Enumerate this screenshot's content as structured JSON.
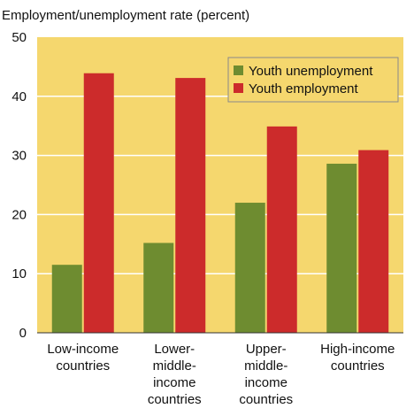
{
  "chart_data": {
    "type": "bar",
    "title": "",
    "ylabel": "Employment/unemployment rate (percent)",
    "xlabel": "",
    "ylim": [
      0,
      50
    ],
    "yticks": [
      0,
      10,
      20,
      30,
      40,
      50
    ],
    "grid": true,
    "legend_position": "top-right",
    "categories": [
      [
        "Low-income",
        "countries"
      ],
      [
        "Lower-",
        "middle-",
        "income",
        "countries"
      ],
      [
        "Upper-",
        "middle-",
        "income",
        "countries"
      ],
      [
        "High-income",
        "countries"
      ]
    ],
    "series": [
      {
        "name": "Youth unemployment",
        "color": "#6e8c30",
        "values": [
          11.5,
          15.2,
          22.0,
          28.6
        ]
      },
      {
        "name": "Youth employment",
        "color": "#cc2b2b",
        "values": [
          43.9,
          43.1,
          34.9,
          30.9
        ]
      }
    ],
    "colors": {
      "plot_background": "#f5d76e",
      "gridline": "#ffffff",
      "axis": "#333333"
    }
  }
}
